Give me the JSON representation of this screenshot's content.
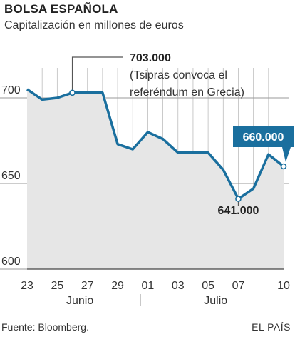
{
  "header": {
    "title": "BOLSA ESPAÑOLA",
    "subtitle": "Capitalización en millones de euros"
  },
  "footer": {
    "source": "Fuente: Bloomberg.",
    "brand": "EL PAÍS"
  },
  "chart_data": {
    "type": "area",
    "title": "BOLSA ESPAÑOLA",
    "subtitle": "Capitalización en millones de euros",
    "ylim": [
      600,
      710
    ],
    "yticks": [
      {
        "value": 700,
        "label": "700"
      },
      {
        "value": 650,
        "label": "650"
      },
      {
        "value": 600,
        "label": "600"
      }
    ],
    "grid": true,
    "x": [
      "23",
      "24",
      "25",
      "26",
      "27",
      "28",
      "29",
      "30",
      "01",
      "02",
      "03",
      "04",
      "05",
      "06",
      "07",
      "08",
      "09",
      "10"
    ],
    "x_tick_labels": [
      {
        "index": 0,
        "label": "23"
      },
      {
        "index": 2,
        "label": "25"
      },
      {
        "index": 4,
        "label": "27"
      },
      {
        "index": 6,
        "label": "29"
      },
      {
        "index": 8,
        "label": "01"
      },
      {
        "index": 10,
        "label": "03"
      },
      {
        "index": 12,
        "label": "05"
      },
      {
        "index": 14,
        "label": "07"
      },
      {
        "index": 17,
        "label": "10"
      }
    ],
    "month_labels": [
      {
        "label": "Junio",
        "center_index": 3.5
      },
      {
        "label": "Julio",
        "center_index": 12.5
      }
    ],
    "month_separator_index": 7.5,
    "values": [
      705,
      699,
      700,
      703,
      703,
      703,
      673,
      670,
      680,
      676,
      668,
      668,
      668,
      658,
      641,
      647,
      667,
      660
    ],
    "markers": [
      3,
      14,
      17
    ],
    "annotations": [
      {
        "index": 3,
        "value": 703,
        "lines": [
          "703.000",
          "(Tsipras convoca el",
          "referéndum en Grecia)"
        ]
      },
      {
        "index": 14,
        "value": 641,
        "label": "641.000"
      },
      {
        "index": 17,
        "value": 660,
        "label": "660.000",
        "style": "callout"
      }
    ],
    "colors": {
      "line": "#1a6f9e",
      "fill": "#e6e6e6",
      "grid": "#9a9a9a",
      "callout": "#1a6f9e"
    }
  }
}
